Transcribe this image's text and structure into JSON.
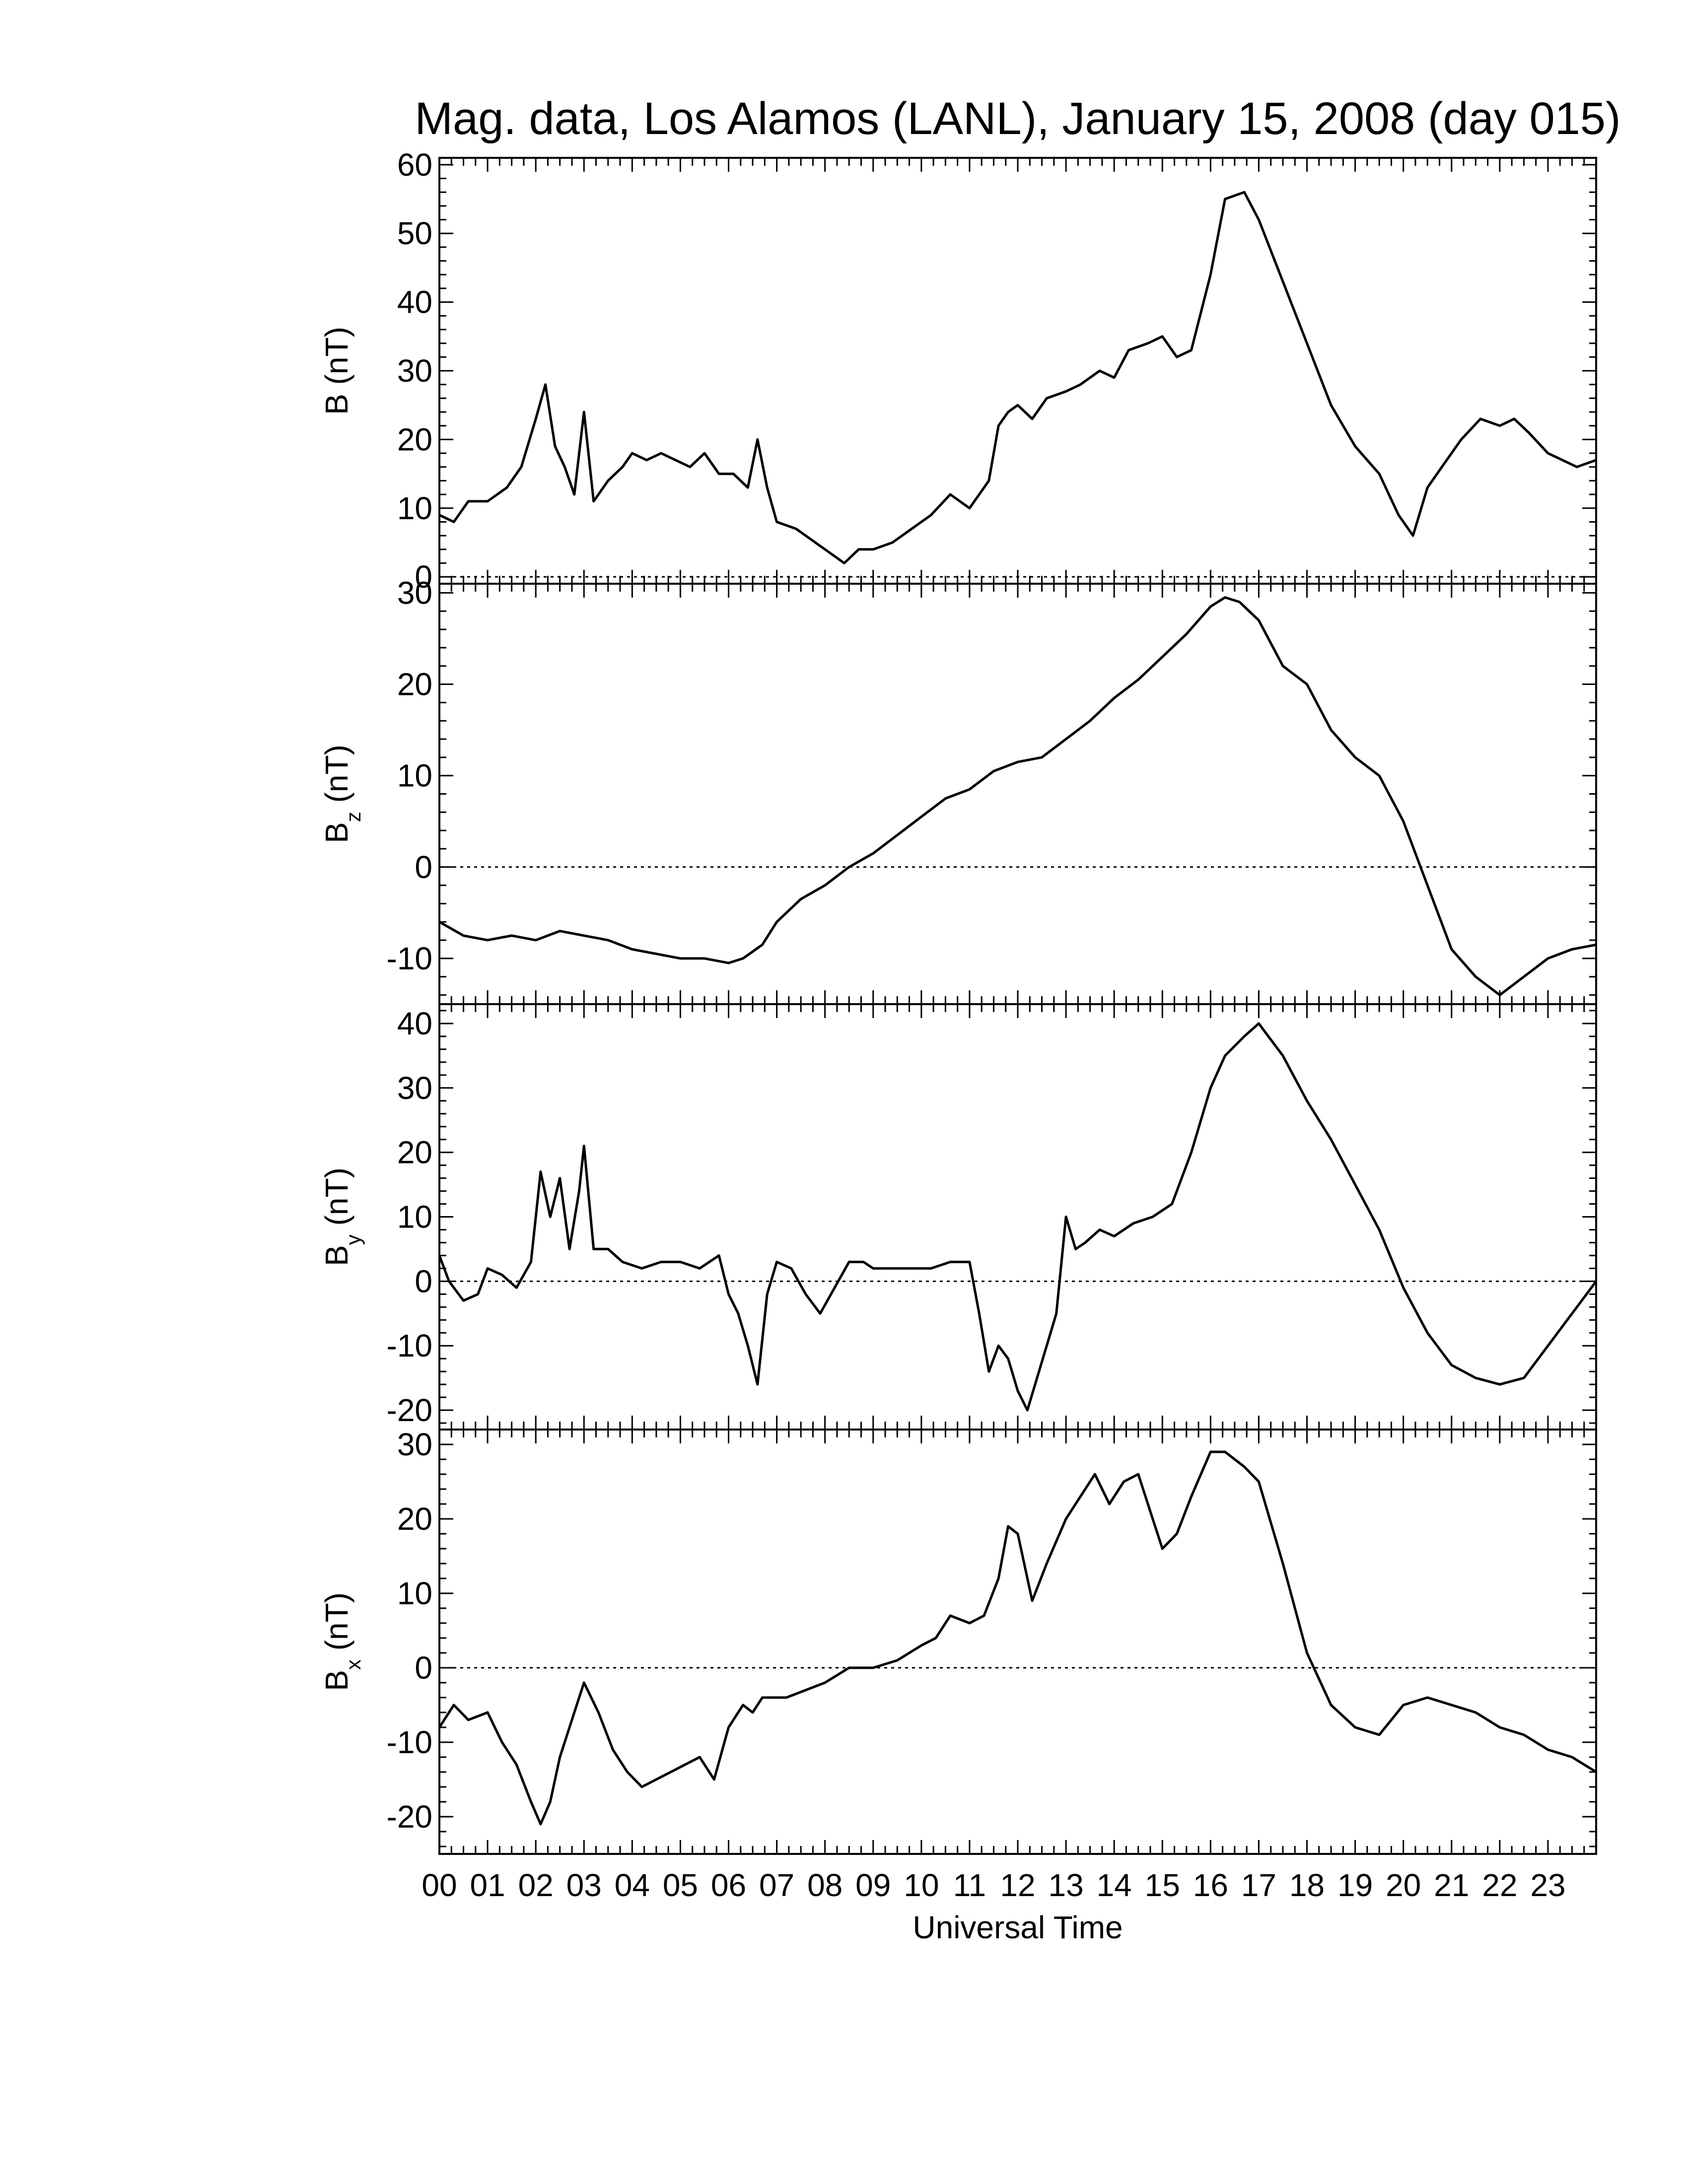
{
  "chart_data": {
    "type": "line",
    "title": "Mag. data, Los Alamos (LANL), January 15, 2008 (day 015)",
    "xlabel": "Universal Time",
    "xlim": [
      0,
      24
    ],
    "x_tick_labels": [
      "00",
      "01",
      "02",
      "03",
      "04",
      "05",
      "06",
      "07",
      "08",
      "09",
      "10",
      "11",
      "12",
      "13",
      "14",
      "15",
      "16",
      "17",
      "18",
      "19",
      "20",
      "21",
      "22",
      "23"
    ],
    "zero_line": "dotted",
    "panels": [
      {
        "ylabel_main": "B",
        "ylabel_sub": "",
        "ylabel_unit": "(nT)",
        "ylim": [
          -1,
          61
        ],
        "yticks": [
          0,
          10,
          20,
          30,
          40,
          50,
          60
        ],
        "y_tick_labels": [
          "0",
          "10",
          "20",
          "30",
          "40",
          "50",
          "60"
        ],
        "x": [
          0,
          0.3,
          0.6,
          1.0,
          1.4,
          1.7,
          2.0,
          2.2,
          2.4,
          2.6,
          2.8,
          3.0,
          3.2,
          3.5,
          3.8,
          4.0,
          4.3,
          4.6,
          4.9,
          5.2,
          5.5,
          5.8,
          6.1,
          6.4,
          6.6,
          6.8,
          7.0,
          7.4,
          7.8,
          8.2,
          8.4,
          8.7,
          9.0,
          9.4,
          9.8,
          10.2,
          10.6,
          11.0,
          11.4,
          11.6,
          11.8,
          12.0,
          12.3,
          12.6,
          13.0,
          13.3,
          13.7,
          14.0,
          14.3,
          14.7,
          15.0,
          15.3,
          15.6,
          16.0,
          16.3,
          16.7,
          17.0,
          17.5,
          18.0,
          18.5,
          19.0,
          19.5,
          19.9,
          20.2,
          20.5,
          20.8,
          21.2,
          21.6,
          22.0,
          22.3,
          22.6,
          23.0,
          23.3,
          23.6,
          24.0
        ],
        "values": [
          9,
          8,
          11,
          11,
          13,
          16,
          23,
          28,
          19,
          16,
          12,
          24,
          11,
          14,
          16,
          18,
          17,
          18,
          17,
          16,
          18,
          15,
          15,
          13,
          20,
          13,
          8,
          7,
          5,
          3,
          2,
          4,
          4,
          5,
          7,
          9,
          12,
          10,
          14,
          22,
          24,
          25,
          23,
          26,
          27,
          28,
          30,
          29,
          33,
          34,
          35,
          32,
          33,
          44,
          55,
          56,
          52,
          43,
          34,
          25,
          19,
          15,
          9,
          6,
          13,
          16,
          20,
          23,
          22,
          23,
          21,
          18,
          17,
          16,
          17
        ]
      },
      {
        "ylabel_main": "B",
        "ylabel_sub": "z",
        "ylabel_unit": "(nT)",
        "ylim": [
          -15,
          31
        ],
        "yticks": [
          -10,
          0,
          10,
          20,
          30
        ],
        "y_tick_labels": [
          "-10",
          "0",
          "10",
          "20",
          "30"
        ],
        "x": [
          0,
          0.5,
          1.0,
          1.5,
          2.0,
          2.5,
          3.0,
          3.5,
          4.0,
          4.5,
          5.0,
          5.5,
          6.0,
          6.3,
          6.7,
          7.0,
          7.5,
          8.0,
          8.5,
          9.0,
          9.5,
          10.0,
          10.5,
          11.0,
          11.5,
          12.0,
          12.5,
          13.0,
          13.5,
          14.0,
          14.5,
          15.0,
          15.5,
          16.0,
          16.3,
          16.6,
          17.0,
          17.5,
          18.0,
          18.5,
          19.0,
          19.5,
          20.0,
          20.5,
          21.0,
          21.5,
          22.0,
          22.5,
          23.0,
          23.5,
          24.0
        ],
        "values": [
          -6,
          -7.5,
          -8,
          -7.5,
          -8,
          -7,
          -7.5,
          -8,
          -9,
          -9.5,
          -10,
          -10,
          -10.5,
          -10,
          -8.5,
          -6,
          -3.5,
          -2,
          0,
          1.5,
          3.5,
          5.5,
          7.5,
          8.5,
          10.5,
          11.5,
          12,
          14,
          16,
          18.5,
          20.5,
          23,
          25.5,
          28.5,
          29.5,
          29,
          27,
          22,
          20,
          15,
          12,
          10,
          5,
          -2,
          -9,
          -12,
          -14,
          -12,
          -10,
          -9,
          -8.5
        ]
      },
      {
        "ylabel_main": "B",
        "ylabel_sub": "y",
        "ylabel_unit": "(nT)",
        "ylim": [
          -23,
          43
        ],
        "yticks": [
          -20,
          -10,
          0,
          10,
          20,
          30,
          40
        ],
        "y_tick_labels": [
          "-20",
          "-10",
          "0",
          "10",
          "20",
          "30",
          "40"
        ],
        "x": [
          0,
          0.2,
          0.5,
          0.8,
          1.0,
          1.3,
          1.6,
          1.9,
          2.1,
          2.3,
          2.5,
          2.7,
          2.9,
          3.0,
          3.2,
          3.5,
          3.8,
          4.2,
          4.6,
          5.0,
          5.4,
          5.8,
          6.0,
          6.2,
          6.4,
          6.6,
          6.8,
          7.0,
          7.3,
          7.6,
          7.9,
          8.2,
          8.5,
          8.8,
          9.0,
          9.4,
          9.8,
          10.2,
          10.6,
          11.0,
          11.2,
          11.4,
          11.6,
          11.8,
          12.0,
          12.2,
          12.4,
          12.6,
          12.8,
          13.0,
          13.2,
          13.4,
          13.7,
          14.0,
          14.4,
          14.8,
          15.2,
          15.6,
          16.0,
          16.3,
          16.7,
          17.0,
          17.5,
          18.0,
          18.5,
          19.0,
          19.5,
          20.0,
          20.5,
          21.0,
          21.5,
          22.0,
          22.5,
          23.0,
          23.5,
          24.0
        ],
        "values": [
          4,
          0,
          -3,
          -2,
          2,
          1,
          -1,
          3,
          17,
          10,
          16,
          5,
          14,
          21,
          5,
          5,
          3,
          2,
          3,
          3,
          2,
          4,
          -2,
          -5,
          -10,
          -16,
          -2,
          3,
          2,
          -2,
          -5,
          -1,
          3,
          3,
          2,
          2,
          2,
          2,
          3,
          3,
          -5,
          -14,
          -10,
          -12,
          -17,
          -20,
          -15,
          -10,
          -5,
          10,
          5,
          6,
          8,
          7,
          9,
          10,
          12,
          20,
          30,
          35,
          38,
          40,
          35,
          28,
          22,
          15,
          8,
          -1,
          -8,
          -13,
          -15,
          -16,
          -15,
          -10,
          -5,
          0
        ]
      },
      {
        "ylabel_main": "B",
        "ylabel_sub": "x",
        "ylabel_unit": "(nT)",
        "ylim": [
          -25,
          32
        ],
        "yticks": [
          -20,
          -10,
          0,
          10,
          20,
          30
        ],
        "y_tick_labels": [
          "-20",
          "-10",
          "0",
          "10",
          "20",
          "30"
        ],
        "x": [
          0,
          0.3,
          0.6,
          1.0,
          1.3,
          1.6,
          1.9,
          2.1,
          2.3,
          2.5,
          2.8,
          3.0,
          3.3,
          3.6,
          3.9,
          4.2,
          4.5,
          4.8,
          5.1,
          5.4,
          5.7,
          6.0,
          6.3,
          6.5,
          6.7,
          6.9,
          7.2,
          7.6,
          8.0,
          8.5,
          9.0,
          9.5,
          10.0,
          10.3,
          10.6,
          11.0,
          11.3,
          11.6,
          11.8,
          12.0,
          12.3,
          12.6,
          13.0,
          13.3,
          13.6,
          13.9,
          14.2,
          14.5,
          14.8,
          15.0,
          15.3,
          15.6,
          16.0,
          16.3,
          16.7,
          17.0,
          17.5,
          18.0,
          18.5,
          19.0,
          19.5,
          20.0,
          20.5,
          21.0,
          21.5,
          22.0,
          22.5,
          23.0,
          23.5,
          24.0
        ],
        "values": [
          -8,
          -5,
          -7,
          -6,
          -10,
          -13,
          -18,
          -21,
          -18,
          -12,
          -6,
          -2,
          -6,
          -11,
          -14,
          -16,
          -15,
          -14,
          -13,
          -12,
          -15,
          -8,
          -5,
          -6,
          -4,
          -4,
          -4,
          -3,
          -2,
          0,
          0,
          1,
          3,
          4,
          7,
          6,
          7,
          12,
          19,
          18,
          9,
          14,
          20,
          23,
          26,
          22,
          25,
          26,
          20,
          16,
          18,
          23,
          29,
          29,
          27,
          25,
          14,
          2,
          -5,
          -8,
          -9,
          -5,
          -4,
          -5,
          -6,
          -8,
          -9,
          -11,
          -12,
          -14
        ]
      }
    ]
  }
}
